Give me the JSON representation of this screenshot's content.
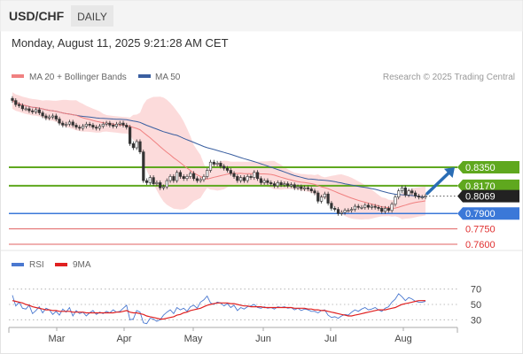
{
  "header": {
    "pair": "USD/CHF",
    "timeframe": "DAILY",
    "datetime": "Monday, August 11, 2025 9:21:28 AM CET"
  },
  "legend_main": [
    {
      "label": "MA 20 + Bollinger Bands",
      "color": "#f08080"
    },
    {
      "label": "MA 50",
      "color": "#3a5fa0"
    }
  ],
  "watermark": "Research © 2025 Trading Central",
  "legend_rsi": [
    {
      "label": "RSI",
      "color": "#4a78d0"
    },
    {
      "label": "9MA",
      "color": "#e02020"
    }
  ],
  "colors": {
    "resistance": "#5fa81e",
    "support_main": "#3b78d8",
    "support_secondary": "#e06060",
    "current_price_tag": "#222222",
    "arrow": "#2a6db5",
    "bollinger_fill": "#fbd5d5",
    "candle": "#333333"
  },
  "chart_data": [
    {
      "type": "candlestick",
      "title": "USD/CHF DAILY",
      "x_tick_labels": [
        "Mar",
        "Apr",
        "May",
        "Jun",
        "Jul",
        "Aug"
      ],
      "ylim": [
        0.754,
        0.916
      ],
      "current_price": 0.8069,
      "current_price_label": "0.8069",
      "levels": [
        {
          "value": 0.835,
          "label": "0.8350",
          "kind": "resistance"
        },
        {
          "value": 0.817,
          "label": "0.8170",
          "kind": "resistance"
        },
        {
          "value": 0.79,
          "label": "0.7900",
          "kind": "pivot"
        },
        {
          "value": 0.775,
          "label": "0.7750",
          "kind": "support"
        },
        {
          "value": 0.76,
          "label": "0.7600",
          "kind": "support"
        }
      ],
      "close": [
        0.9,
        0.896,
        0.895,
        0.892,
        0.892,
        0.89,
        0.889,
        0.891,
        0.888,
        0.885,
        0.883,
        0.884,
        0.885,
        0.882,
        0.878,
        0.876,
        0.877,
        0.879,
        0.876,
        0.874,
        0.873,
        0.875,
        0.877,
        0.876,
        0.874,
        0.873,
        0.875,
        0.877,
        0.878,
        0.876,
        0.875,
        0.877,
        0.878,
        0.876,
        0.874,
        0.858,
        0.854,
        0.86,
        0.85,
        0.822,
        0.82,
        0.825,
        0.819,
        0.82,
        0.815,
        0.816,
        0.822,
        0.826,
        0.822,
        0.83,
        0.826,
        0.824,
        0.826,
        0.829,
        0.824,
        0.822,
        0.823,
        0.826,
        0.832,
        0.84,
        0.838,
        0.839,
        0.836,
        0.834,
        0.832,
        0.829,
        0.826,
        0.822,
        0.825,
        0.822,
        0.826,
        0.825,
        0.83,
        0.824,
        0.82,
        0.822,
        0.82,
        0.819,
        0.817,
        0.82,
        0.818,
        0.819,
        0.817,
        0.818,
        0.815,
        0.816,
        0.814,
        0.815,
        0.814,
        0.812,
        0.81,
        0.802,
        0.806,
        0.809,
        0.8,
        0.795,
        0.794,
        0.79,
        0.791,
        0.793,
        0.793,
        0.794,
        0.797,
        0.796,
        0.796,
        0.798,
        0.796,
        0.797,
        0.796,
        0.795,
        0.792,
        0.795,
        0.793,
        0.799,
        0.806,
        0.812,
        0.815,
        0.808,
        0.812,
        0.81,
        0.807,
        0.806,
        0.806,
        0.807
      ]
    },
    {
      "type": "line",
      "title": "RSI",
      "x_tick_labels": [
        "Mar",
        "Apr",
        "May",
        "Jun",
        "Jul",
        "Aug"
      ],
      "ylim": [
        20,
        80
      ],
      "y_ticks": [
        70,
        50,
        30
      ],
      "series": [
        {
          "name": "RSI",
          "values": [
            62,
            48,
            53,
            45,
            44,
            49,
            38,
            42,
            47,
            39,
            45,
            43,
            37,
            41,
            36,
            44,
            40,
            46,
            35,
            42,
            38,
            40,
            35,
            39,
            42,
            37,
            40,
            38,
            41,
            39,
            43,
            40,
            41,
            45,
            49,
            30,
            31,
            42,
            40,
            26,
            25,
            32,
            31,
            28,
            30,
            36,
            40,
            43,
            38,
            46,
            43,
            45,
            41,
            47,
            49,
            45,
            53,
            56,
            61,
            52,
            50,
            53,
            52,
            48,
            51,
            46,
            49,
            42,
            46,
            44,
            47,
            48,
            50,
            46,
            45,
            47,
            45,
            46,
            44,
            47,
            46,
            47,
            45,
            46,
            43,
            45,
            42,
            44,
            43,
            41,
            41,
            39,
            42,
            43,
            36,
            33,
            34,
            32,
            35,
            37,
            36,
            40,
            43,
            41,
            44,
            46,
            43,
            44,
            46,
            43,
            41,
            45,
            47,
            53,
            57,
            64,
            60,
            55,
            59,
            57,
            54,
            53,
            53,
            54
          ]
        },
        {
          "name": "9MA",
          "values": [
            55,
            54,
            53,
            52,
            50,
            49,
            47,
            46,
            45,
            44,
            43,
            43,
            42,
            42,
            41,
            41,
            41,
            41,
            40,
            40,
            40,
            40,
            39,
            39,
            39,
            39,
            39,
            39,
            39,
            39,
            39,
            40,
            40,
            41,
            42,
            40,
            39,
            39,
            38,
            37,
            35,
            34,
            33,
            32,
            31,
            31,
            32,
            33,
            34,
            36,
            37,
            39,
            40,
            42,
            43,
            44,
            45,
            47,
            49,
            50,
            51,
            52,
            52,
            52,
            52,
            51,
            51,
            50,
            49,
            48,
            48,
            47,
            47,
            47,
            47,
            46,
            46,
            46,
            46,
            46,
            46,
            46,
            46,
            46,
            45,
            45,
            45,
            45,
            44,
            44,
            43,
            43,
            42,
            42,
            41,
            40,
            39,
            38,
            37,
            36,
            35,
            35,
            36,
            37,
            38,
            39,
            40,
            41,
            42,
            43,
            43,
            43,
            44,
            45,
            46,
            48,
            50,
            51,
            52,
            53,
            54,
            55,
            55,
            55
          ]
        }
      ]
    }
  ]
}
